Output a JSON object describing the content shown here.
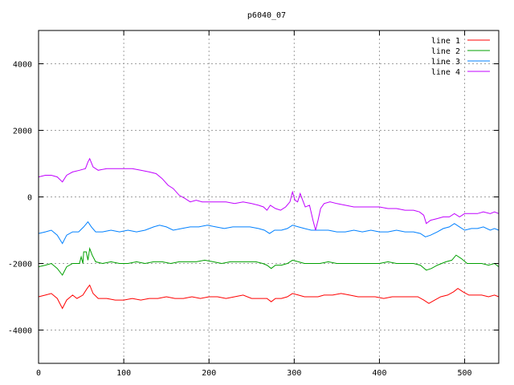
{
  "chart_data": {
    "type": "line",
    "title": "p6040_07",
    "xlabel": "",
    "ylabel": "",
    "xlim": [
      0,
      540
    ],
    "ylim": [
      -5000,
      5000
    ],
    "x_ticks": [
      "0",
      "100",
      "200",
      "300",
      "400",
      "500"
    ],
    "y_ticks": [
      "-4000",
      "-2000",
      "0",
      "2000",
      "4000"
    ],
    "grid": true,
    "legend": "top-right",
    "series": [
      {
        "name": "line 1",
        "color": "#ff0000",
        "points": [
          [
            0,
            -3000
          ],
          [
            8,
            -2950
          ],
          [
            15,
            -2900
          ],
          [
            22,
            -3050
          ],
          [
            28,
            -3350
          ],
          [
            33,
            -3100
          ],
          [
            40,
            -2950
          ],
          [
            45,
            -3050
          ],
          [
            52,
            -2950
          ],
          [
            57,
            -2750
          ],
          [
            60,
            -2650
          ],
          [
            64,
            -2900
          ],
          [
            70,
            -3050
          ],
          [
            80,
            -3050
          ],
          [
            90,
            -3100
          ],
          [
            100,
            -3100
          ],
          [
            110,
            -3050
          ],
          [
            120,
            -3100
          ],
          [
            130,
            -3050
          ],
          [
            140,
            -3050
          ],
          [
            150,
            -3000
          ],
          [
            160,
            -3050
          ],
          [
            170,
            -3050
          ],
          [
            180,
            -3000
          ],
          [
            190,
            -3050
          ],
          [
            200,
            -3000
          ],
          [
            210,
            -3000
          ],
          [
            220,
            -3050
          ],
          [
            230,
            -3000
          ],
          [
            240,
            -2950
          ],
          [
            250,
            -3050
          ],
          [
            260,
            -3050
          ],
          [
            268,
            -3050
          ],
          [
            273,
            -3150
          ],
          [
            278,
            -3050
          ],
          [
            285,
            -3050
          ],
          [
            292,
            -3000
          ],
          [
            298,
            -2900
          ],
          [
            305,
            -2950
          ],
          [
            312,
            -3000
          ],
          [
            320,
            -3000
          ],
          [
            328,
            -3000
          ],
          [
            335,
            -2950
          ],
          [
            345,
            -2950
          ],
          [
            355,
            -2900
          ],
          [
            365,
            -2950
          ],
          [
            375,
            -3000
          ],
          [
            385,
            -3000
          ],
          [
            395,
            -3000
          ],
          [
            405,
            -3050
          ],
          [
            415,
            -3000
          ],
          [
            425,
            -3000
          ],
          [
            435,
            -3000
          ],
          [
            445,
            -3000
          ],
          [
            452,
            -3100
          ],
          [
            458,
            -3200
          ],
          [
            465,
            -3100
          ],
          [
            472,
            -3000
          ],
          [
            480,
            -2950
          ],
          [
            487,
            -2850
          ],
          [
            492,
            -2750
          ],
          [
            498,
            -2850
          ],
          [
            505,
            -2950
          ],
          [
            512,
            -2950
          ],
          [
            520,
            -2950
          ],
          [
            528,
            -3000
          ],
          [
            535,
            -2950
          ],
          [
            540,
            -3000
          ]
        ]
      },
      {
        "name": "line 2",
        "color": "#00a000",
        "points": [
          [
            0,
            -2100
          ],
          [
            8,
            -2050
          ],
          [
            15,
            -2000
          ],
          [
            22,
            -2150
          ],
          [
            28,
            -2350
          ],
          [
            33,
            -2100
          ],
          [
            40,
            -2000
          ],
          [
            48,
            -2000
          ],
          [
            50,
            -1800
          ],
          [
            52,
            -2000
          ],
          [
            53,
            -1650
          ],
          [
            56,
            -1650
          ],
          [
            58,
            -1900
          ],
          [
            60,
            -1550
          ],
          [
            63,
            -1750
          ],
          [
            67,
            -1950
          ],
          [
            75,
            -2000
          ],
          [
            85,
            -1950
          ],
          [
            95,
            -2000
          ],
          [
            105,
            -2000
          ],
          [
            115,
            -1950
          ],
          [
            125,
            -2000
          ],
          [
            135,
            -1950
          ],
          [
            145,
            -1950
          ],
          [
            155,
            -2000
          ],
          [
            165,
            -1950
          ],
          [
            175,
            -1950
          ],
          [
            185,
            -1950
          ],
          [
            195,
            -1900
          ],
          [
            205,
            -1950
          ],
          [
            215,
            -2000
          ],
          [
            225,
            -1950
          ],
          [
            235,
            -1950
          ],
          [
            245,
            -1950
          ],
          [
            255,
            -1950
          ],
          [
            263,
            -2000
          ],
          [
            268,
            -2050
          ],
          [
            273,
            -2150
          ],
          [
            278,
            -2050
          ],
          [
            285,
            -2050
          ],
          [
            292,
            -2000
          ],
          [
            298,
            -1900
          ],
          [
            305,
            -1950
          ],
          [
            312,
            -2000
          ],
          [
            320,
            -2000
          ],
          [
            330,
            -2000
          ],
          [
            340,
            -1950
          ],
          [
            350,
            -2000
          ],
          [
            360,
            -2000
          ],
          [
            370,
            -2000
          ],
          [
            380,
            -2000
          ],
          [
            390,
            -2000
          ],
          [
            400,
            -2000
          ],
          [
            410,
            -1950
          ],
          [
            420,
            -2000
          ],
          [
            430,
            -2000
          ],
          [
            440,
            -2000
          ],
          [
            448,
            -2050
          ],
          [
            455,
            -2200
          ],
          [
            461,
            -2150
          ],
          [
            468,
            -2050
          ],
          [
            478,
            -1950
          ],
          [
            485,
            -1900
          ],
          [
            490,
            -1750
          ],
          [
            496,
            -1850
          ],
          [
            503,
            -2000
          ],
          [
            512,
            -2000
          ],
          [
            520,
            -2000
          ],
          [
            528,
            -2050
          ],
          [
            535,
            -2000
          ],
          [
            540,
            -2100
          ]
        ]
      },
      {
        "name": "line 3",
        "color": "#0080ff",
        "points": [
          [
            0,
            -1100
          ],
          [
            8,
            -1050
          ],
          [
            15,
            -1000
          ],
          [
            22,
            -1150
          ],
          [
            28,
            -1400
          ],
          [
            33,
            -1150
          ],
          [
            40,
            -1050
          ],
          [
            47,
            -1050
          ],
          [
            53,
            -900
          ],
          [
            58,
            -750
          ],
          [
            62,
            -900
          ],
          [
            67,
            -1050
          ],
          [
            75,
            -1050
          ],
          [
            85,
            -1000
          ],
          [
            95,
            -1050
          ],
          [
            105,
            -1000
          ],
          [
            115,
            -1050
          ],
          [
            125,
            -1000
          ],
          [
            135,
            -900
          ],
          [
            142,
            -850
          ],
          [
            150,
            -900
          ],
          [
            158,
            -1000
          ],
          [
            168,
            -950
          ],
          [
            178,
            -900
          ],
          [
            188,
            -900
          ],
          [
            198,
            -850
          ],
          [
            208,
            -900
          ],
          [
            218,
            -950
          ],
          [
            228,
            -900
          ],
          [
            238,
            -900
          ],
          [
            248,
            -900
          ],
          [
            258,
            -950
          ],
          [
            265,
            -1000
          ],
          [
            271,
            -1100
          ],
          [
            277,
            -1000
          ],
          [
            285,
            -1000
          ],
          [
            292,
            -950
          ],
          [
            298,
            -850
          ],
          [
            305,
            -900
          ],
          [
            312,
            -950
          ],
          [
            320,
            -1000
          ],
          [
            330,
            -1000
          ],
          [
            340,
            -1000
          ],
          [
            350,
            -1050
          ],
          [
            360,
            -1050
          ],
          [
            370,
            -1000
          ],
          [
            380,
            -1050
          ],
          [
            390,
            -1000
          ],
          [
            400,
            -1050
          ],
          [
            410,
            -1050
          ],
          [
            420,
            -1000
          ],
          [
            430,
            -1050
          ],
          [
            440,
            -1050
          ],
          [
            448,
            -1100
          ],
          [
            454,
            -1200
          ],
          [
            460,
            -1150
          ],
          [
            468,
            -1050
          ],
          [
            475,
            -950
          ],
          [
            482,
            -900
          ],
          [
            488,
            -800
          ],
          [
            494,
            -900
          ],
          [
            500,
            -1000
          ],
          [
            508,
            -950
          ],
          [
            515,
            -950
          ],
          [
            522,
            -900
          ],
          [
            530,
            -1000
          ],
          [
            535,
            -950
          ],
          [
            540,
            -1000
          ]
        ]
      },
      {
        "name": "line 4",
        "color": "#c000ff",
        "points": [
          [
            0,
            600
          ],
          [
            8,
            650
          ],
          [
            15,
            650
          ],
          [
            22,
            600
          ],
          [
            28,
            450
          ],
          [
            33,
            650
          ],
          [
            40,
            750
          ],
          [
            48,
            800
          ],
          [
            55,
            850
          ],
          [
            58,
            1050
          ],
          [
            60,
            1150
          ],
          [
            64,
            900
          ],
          [
            70,
            800
          ],
          [
            80,
            850
          ],
          [
            90,
            850
          ],
          [
            100,
            850
          ],
          [
            110,
            850
          ],
          [
            120,
            800
          ],
          [
            130,
            750
          ],
          [
            138,
            700
          ],
          [
            145,
            550
          ],
          [
            152,
            350
          ],
          [
            158,
            250
          ],
          [
            165,
            50
          ],
          [
            172,
            -50
          ],
          [
            178,
            -150
          ],
          [
            185,
            -100
          ],
          [
            192,
            -150
          ],
          [
            200,
            -150
          ],
          [
            210,
            -150
          ],
          [
            220,
            -150
          ],
          [
            230,
            -200
          ],
          [
            240,
            -150
          ],
          [
            250,
            -200
          ],
          [
            258,
            -250
          ],
          [
            264,
            -300
          ],
          [
            268,
            -400
          ],
          [
            272,
            -250
          ],
          [
            278,
            -350
          ],
          [
            284,
            -400
          ],
          [
            290,
            -300
          ],
          [
            295,
            -150
          ],
          [
            298,
            150
          ],
          [
            301,
            -100
          ],
          [
            304,
            -150
          ],
          [
            307,
            100
          ],
          [
            310,
            -100
          ],
          [
            313,
            -300
          ],
          [
            318,
            -250
          ],
          [
            322,
            -700
          ],
          [
            325,
            -1000
          ],
          [
            328,
            -700
          ],
          [
            331,
            -350
          ],
          [
            335,
            -200
          ],
          [
            342,
            -150
          ],
          [
            350,
            -200
          ],
          [
            360,
            -250
          ],
          [
            370,
            -300
          ],
          [
            380,
            -300
          ],
          [
            390,
            -300
          ],
          [
            400,
            -300
          ],
          [
            410,
            -350
          ],
          [
            420,
            -350
          ],
          [
            430,
            -400
          ],
          [
            440,
            -400
          ],
          [
            447,
            -450
          ],
          [
            452,
            -550
          ],
          [
            455,
            -800
          ],
          [
            460,
            -700
          ],
          [
            468,
            -650
          ],
          [
            475,
            -600
          ],
          [
            482,
            -600
          ],
          [
            488,
            -500
          ],
          [
            494,
            -600
          ],
          [
            500,
            -500
          ],
          [
            508,
            -500
          ],
          [
            515,
            -500
          ],
          [
            522,
            -450
          ],
          [
            530,
            -500
          ],
          [
            535,
            -450
          ],
          [
            540,
            -500
          ]
        ]
      }
    ]
  }
}
